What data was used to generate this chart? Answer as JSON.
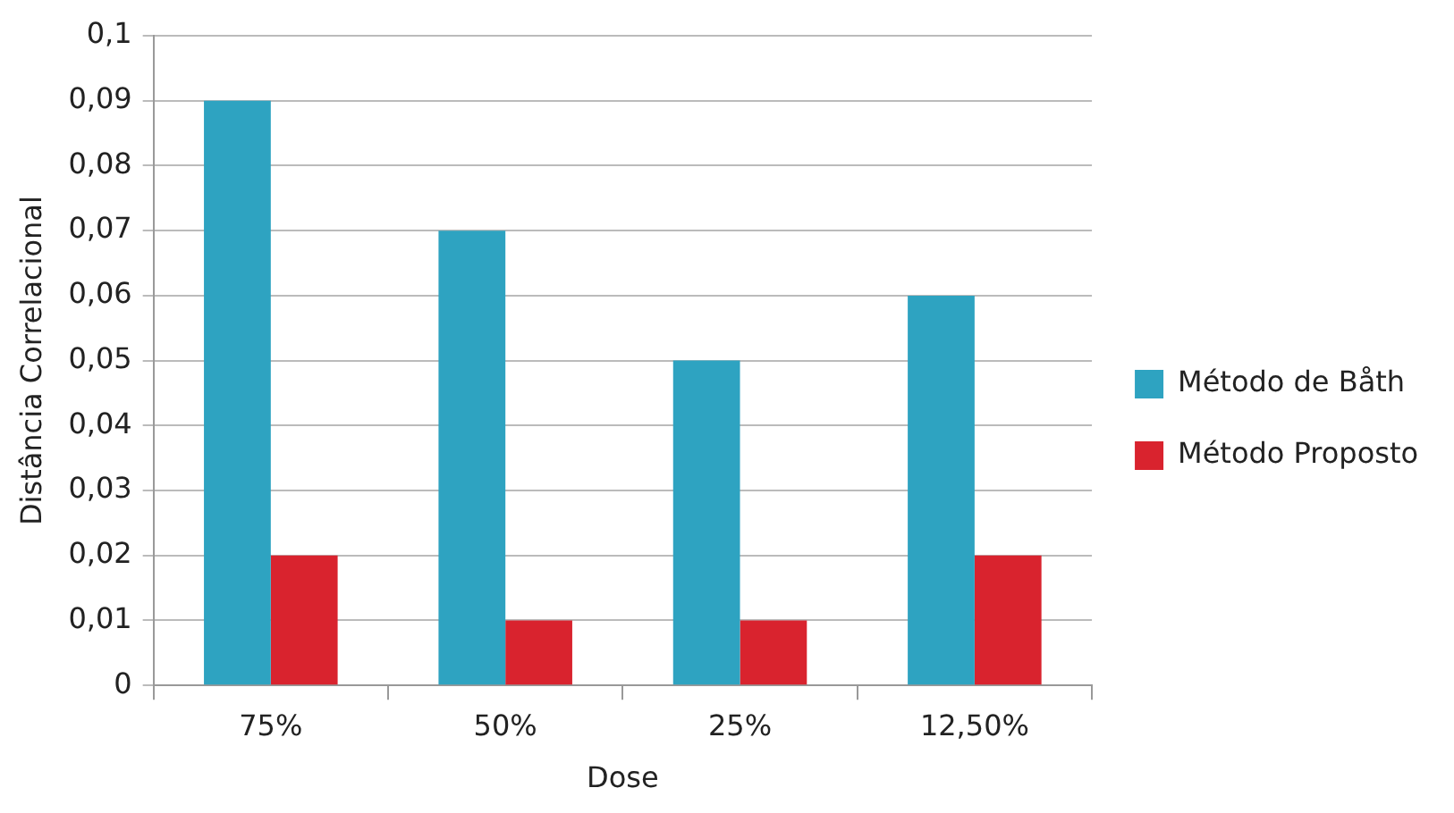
{
  "chart_data": {
    "type": "bar",
    "xlabel": "Dose",
    "ylabel": "Distância Correlacional",
    "categories": [
      "75%",
      "50%",
      "25%",
      "12,50%"
    ],
    "series": [
      {
        "name": "Método de Båth",
        "color": "#2ea3c1",
        "values": [
          0.09,
          0.07,
          0.05,
          0.06
        ]
      },
      {
        "name": "Método Proposto",
        "color": "#d9232e",
        "values": [
          0.02,
          0.01,
          0.01,
          0.02
        ]
      }
    ],
    "ylim": [
      0,
      0.1
    ],
    "yticks": [
      {
        "value": 0,
        "label": "0"
      },
      {
        "value": 0.01,
        "label": "0,01"
      },
      {
        "value": 0.02,
        "label": "0,02"
      },
      {
        "value": 0.03,
        "label": "0,03"
      },
      {
        "value": 0.04,
        "label": "0,04"
      },
      {
        "value": 0.05,
        "label": "0,05"
      },
      {
        "value": 0.06,
        "label": "0,06"
      },
      {
        "value": 0.07,
        "label": "0,07"
      },
      {
        "value": 0.08,
        "label": "0,08"
      },
      {
        "value": 0.09,
        "label": "0,09"
      },
      {
        "value": 0.1,
        "label": "0,1"
      }
    ],
    "grid": "y",
    "legend": "right"
  }
}
